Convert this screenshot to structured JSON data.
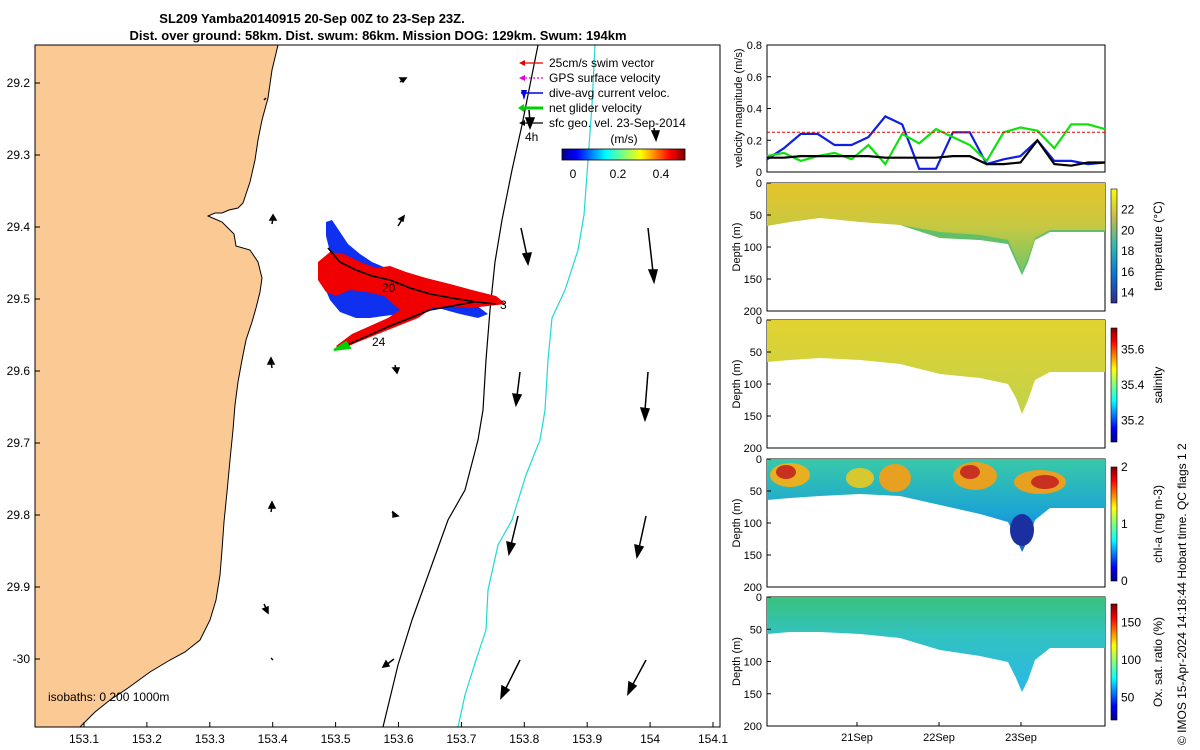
{
  "title": {
    "line1": "SL209 Yamba20140915 20-Sep 00Z to 23-Sep 23Z.",
    "line2": "Dist. over ground: 58km. Dist. swum: 86km. Mission DOG: 129km. Swum: 194km"
  },
  "map": {
    "xticks": [
      "153.1",
      "153.2",
      "153.3",
      "153.4",
      "153.5",
      "153.6",
      "153.7",
      "153.8",
      "153.9",
      "154",
      "154.1"
    ],
    "yticks": [
      "29.2",
      "29.3",
      "29.4",
      "29.5",
      "29.6",
      "29.7",
      "29.8",
      "29.9",
      "-30"
    ],
    "legend": [
      {
        "label": "25cm/s swim vector",
        "color": "#e00000"
      },
      {
        "label": "GPS surface velocity",
        "color": "#e000e0"
      },
      {
        "label": "dive-avg current veloc.",
        "color": "#0000e0"
      },
      {
        "label": "net glider velocity",
        "color": "#00d000"
      },
      {
        "label": "sfc geo. vel. 23-Sep-2014",
        "color": "#000000"
      }
    ],
    "colorbar": {
      "label": "(m/s)",
      "ticks": [
        "0",
        "0.2",
        "0.4"
      ]
    },
    "scale_label": "4h",
    "track_labels": [
      "20",
      "3",
      "24"
    ],
    "isobaths_label": "isobaths: 0   200  1000m"
  },
  "chart_data": [
    {
      "type": "line",
      "ylabel": "velocity magnitude (m/s)",
      "ylim": [
        0,
        0.8
      ],
      "yticks": [
        "0",
        "0.2",
        "0.4",
        "0.6",
        "0.8"
      ],
      "series": [
        {
          "name": "dive-avg current veloc.",
          "color": "#1020e0",
          "values": [
            0.08,
            0.15,
            0.24,
            0.24,
            0.17,
            0.17,
            0.22,
            0.35,
            0.3,
            0.02,
            0.02,
            0.25,
            0.25,
            0.05,
            0.08,
            0.1,
            0.2,
            0.07,
            0.07,
            0.05,
            0.06
          ]
        },
        {
          "name": "net glider velocity",
          "color": "#10e010",
          "values": [
            0.1,
            0.12,
            0.07,
            0.1,
            0.12,
            0.08,
            0.17,
            0.05,
            0.24,
            0.18,
            0.27,
            0.22,
            0.17,
            0.07,
            0.25,
            0.28,
            0.26,
            0.15,
            0.3,
            0.3,
            0.27
          ]
        },
        {
          "name": "sfc geo. vel.",
          "color": "#000000",
          "values": [
            0.09,
            0.09,
            0.1,
            0.1,
            0.1,
            0.1,
            0.1,
            0.09,
            0.09,
            0.09,
            0.09,
            0.1,
            0.1,
            0.05,
            0.05,
            0.06,
            0.2,
            0.05,
            0.04,
            0.06,
            0.06
          ]
        },
        {
          "name": "25cm/s swim vector",
          "color": "#e00000",
          "values": [
            0.25,
            0.25,
            0.25,
            0.25,
            0.25,
            0.25,
            0.25,
            0.25,
            0.25,
            0.25,
            0.25,
            0.25,
            0.25,
            0.25,
            0.25,
            0.25,
            0.25,
            0.25,
            0.25,
            0.25,
            0.25
          ]
        }
      ]
    },
    {
      "type": "heatmap",
      "ylabel": "Depth (m)",
      "ylim": [
        0,
        200
      ],
      "yticks": [
        "0",
        "50",
        "100",
        "150",
        "200"
      ],
      "colorbar_label": "temperature (°C)",
      "colorbar_ticks": [
        "14",
        "16",
        "18",
        "20",
        "22"
      ]
    },
    {
      "type": "heatmap",
      "ylabel": "Depth (m)",
      "ylim": [
        0,
        200
      ],
      "yticks": [
        "0",
        "50",
        "100",
        "150",
        "200"
      ],
      "colorbar_label": "salinity",
      "colorbar_ticks": [
        "35.2",
        "35.4",
        "35.6"
      ]
    },
    {
      "type": "heatmap",
      "ylabel": "Depth (m)",
      "ylim": [
        0,
        200
      ],
      "yticks": [
        "0",
        "50",
        "100",
        "150",
        "200"
      ],
      "colorbar_label": "chl-a (mg m-3)",
      "colorbar_ticks": [
        "0",
        "1",
        "2"
      ]
    },
    {
      "type": "heatmap",
      "ylabel": "Depth (m)",
      "ylim": [
        0,
        200
      ],
      "yticks": [
        "0",
        "50",
        "100",
        "150",
        "200"
      ],
      "colorbar_label": "Ox. sat. ratio (%)",
      "colorbar_ticks": [
        "50",
        "100",
        "150"
      ],
      "xticks": [
        "21Sep",
        "22Sep",
        "23Sep"
      ]
    }
  ],
  "footer": "© IMOS 15-Apr-2024 14:18:44 Hobart time. QC flags 1  2"
}
